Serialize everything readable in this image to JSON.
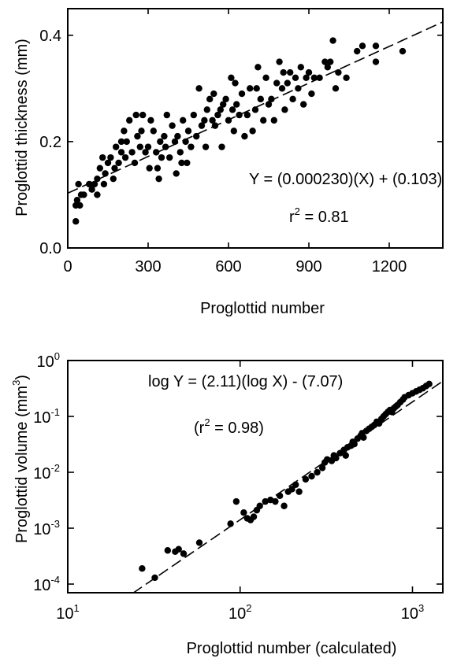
{
  "chart_data": [
    {
      "type": "scatter",
      "title": "",
      "xlabel": "Proglottid number",
      "ylabel": "Proglottid  thickness (mm)",
      "xlim": [
        0,
        1400
      ],
      "ylim": [
        0,
        0.45
      ],
      "x_ticks": [
        {
          "value": 0,
          "label": "0"
        },
        {
          "value": 300,
          "label": "300"
        },
        {
          "value": 600,
          "label": "600"
        },
        {
          "value": 900,
          "label": "900"
        },
        {
          "value": 1200,
          "label": "1200"
        }
      ],
      "y_ticks": [
        {
          "value": 0,
          "label": "0.0"
        },
        {
          "value": 0.2,
          "label": "0.2"
        },
        {
          "value": 0.4,
          "label": "0.4"
        }
      ],
      "grid": false,
      "fit_line": {
        "slope": 0.00023,
        "intercept": 0.103,
        "style": "dashed"
      },
      "annotations": {
        "equation": "Y = (0.000230)(X) + (0.103)",
        "r2_prefix": "r",
        "r2_sup": "2",
        "r2_value": " = 0.81"
      },
      "points": [
        [
          30,
          0.05
        ],
        [
          30,
          0.08
        ],
        [
          35,
          0.09
        ],
        [
          40,
          0.12
        ],
        [
          45,
          0.08
        ],
        [
          50,
          0.1
        ],
        [
          60,
          0.1
        ],
        [
          80,
          0.12
        ],
        [
          90,
          0.11
        ],
        [
          100,
          0.12
        ],
        [
          110,
          0.13
        ],
        [
          110,
          0.1
        ],
        [
          120,
          0.15
        ],
        [
          130,
          0.17
        ],
        [
          135,
          0.12
        ],
        [
          140,
          0.14
        ],
        [
          150,
          0.16
        ],
        [
          160,
          0.17
        ],
        [
          170,
          0.13
        ],
        [
          175,
          0.15
        ],
        [
          180,
          0.19
        ],
        [
          190,
          0.16
        ],
        [
          200,
          0.18
        ],
        [
          200,
          0.2
        ],
        [
          210,
          0.22
        ],
        [
          215,
          0.17
        ],
        [
          220,
          0.2
        ],
        [
          230,
          0.24
        ],
        [
          240,
          0.18
        ],
        [
          250,
          0.16
        ],
        [
          255,
          0.25
        ],
        [
          260,
          0.21
        ],
        [
          270,
          0.19
        ],
        [
          275,
          0.22
        ],
        [
          280,
          0.25
        ],
        [
          290,
          0.18
        ],
        [
          300,
          0.19
        ],
        [
          305,
          0.15
        ],
        [
          310,
          0.24
        ],
        [
          320,
          0.22
        ],
        [
          330,
          0.18
        ],
        [
          335,
          0.15
        ],
        [
          340,
          0.13
        ],
        [
          345,
          0.2
        ],
        [
          350,
          0.17
        ],
        [
          360,
          0.21
        ],
        [
          365,
          0.19
        ],
        [
          370,
          0.25
        ],
        [
          380,
          0.17
        ],
        [
          390,
          0.23
        ],
        [
          400,
          0.2
        ],
        [
          405,
          0.14
        ],
        [
          410,
          0.21
        ],
        [
          420,
          0.18
        ],
        [
          425,
          0.16
        ],
        [
          430,
          0.24
        ],
        [
          440,
          0.2
        ],
        [
          445,
          0.16
        ],
        [
          450,
          0.22
        ],
        [
          460,
          0.19
        ],
        [
          470,
          0.25
        ],
        [
          480,
          0.21
        ],
        [
          490,
          0.3
        ],
        [
          500,
          0.23
        ],
        [
          510,
          0.24
        ],
        [
          515,
          0.19
        ],
        [
          520,
          0.26
        ],
        [
          530,
          0.28
        ],
        [
          540,
          0.24
        ],
        [
          545,
          0.29
        ],
        [
          550,
          0.23
        ],
        [
          560,
          0.25
        ],
        [
          570,
          0.26
        ],
        [
          575,
          0.19
        ],
        [
          580,
          0.27
        ],
        [
          590,
          0.28
        ],
        [
          600,
          0.24
        ],
        [
          610,
          0.32
        ],
        [
          615,
          0.26
        ],
        [
          620,
          0.22
        ],
        [
          625,
          0.31
        ],
        [
          630,
          0.27
        ],
        [
          640,
          0.25
        ],
        [
          650,
          0.29
        ],
        [
          660,
          0.21
        ],
        [
          670,
          0.25
        ],
        [
          680,
          0.3
        ],
        [
          690,
          0.22
        ],
        [
          700,
          0.26
        ],
        [
          705,
          0.3
        ],
        [
          710,
          0.34
        ],
        [
          720,
          0.28
        ],
        [
          730,
          0.24
        ],
        [
          740,
          0.32
        ],
        [
          750,
          0.27
        ],
        [
          760,
          0.28
        ],
        [
          770,
          0.24
        ],
        [
          780,
          0.31
        ],
        [
          790,
          0.35
        ],
        [
          800,
          0.3
        ],
        [
          805,
          0.33
        ],
        [
          810,
          0.26
        ],
        [
          820,
          0.31
        ],
        [
          830,
          0.33
        ],
        [
          840,
          0.28
        ],
        [
          850,
          0.32
        ],
        [
          860,
          0.3
        ],
        [
          870,
          0.34
        ],
        [
          880,
          0.27
        ],
        [
          890,
          0.32
        ],
        [
          900,
          0.33
        ],
        [
          910,
          0.29
        ],
        [
          920,
          0.32
        ],
        [
          940,
          0.32
        ],
        [
          960,
          0.35
        ],
        [
          970,
          0.34
        ],
        [
          980,
          0.35
        ],
        [
          990,
          0.39
        ],
        [
          1000,
          0.3
        ],
        [
          1010,
          0.33
        ],
        [
          1040,
          0.32
        ],
        [
          1080,
          0.37
        ],
        [
          1100,
          0.38
        ],
        [
          1150,
          0.38
        ],
        [
          1150,
          0.35
        ],
        [
          1250,
          0.37
        ]
      ]
    },
    {
      "type": "scatter",
      "title": "",
      "xlabel": "Proglottid number (calculated)",
      "ylabel": "Proglottid  volume (mm",
      "ylabel_sup": "3",
      "ylabel_close": ")",
      "x_scale": "log",
      "y_scale": "log",
      "xlim": [
        10,
        1500
      ],
      "ylim": [
        7e-05,
        1
      ],
      "x_ticks": [
        {
          "value": 10,
          "base": "10",
          "exp": "1"
        },
        {
          "value": 100,
          "base": "10",
          "exp": "2"
        },
        {
          "value": 1000,
          "base": "10",
          "exp": "3"
        }
      ],
      "y_ticks": [
        {
          "value": 0.0001,
          "base": "10",
          "exp": "-4"
        },
        {
          "value": 0.001,
          "base": "10",
          "exp": "-3"
        },
        {
          "value": 0.01,
          "base": "10",
          "exp": "-2"
        },
        {
          "value": 0.1,
          "base": "10",
          "exp": "-1"
        },
        {
          "value": 1,
          "base": "10",
          "exp": "0"
        }
      ],
      "grid": false,
      "fit_line": {
        "log_slope": 2.11,
        "log_intercept": -7.07,
        "style": "dashed"
      },
      "annotations": {
        "equation": "log Y = (2.11)(log X) - (7.07)",
        "r2_prefix": "(r",
        "r2_sup": "2",
        "r2_value": " = 0.98)"
      },
      "points": [
        [
          27,
          0.00019
        ],
        [
          32,
          0.00013
        ],
        [
          38,
          0.0004
        ],
        [
          42,
          0.00038
        ],
        [
          44,
          0.00042
        ],
        [
          47,
          0.00035
        ],
        [
          58,
          0.00055
        ],
        [
          88,
          0.0012
        ],
        [
          95,
          0.003
        ],
        [
          105,
          0.0019
        ],
        [
          110,
          0.0015
        ],
        [
          115,
          0.0014
        ],
        [
          120,
          0.0016
        ],
        [
          125,
          0.0021
        ],
        [
          130,
          0.0025
        ],
        [
          140,
          0.003
        ],
        [
          150,
          0.0032
        ],
        [
          160,
          0.003
        ],
        [
          170,
          0.0038
        ],
        [
          180,
          0.0025
        ],
        [
          190,
          0.0045
        ],
        [
          200,
          0.005
        ],
        [
          210,
          0.006
        ],
        [
          220,
          0.0045
        ],
        [
          240,
          0.0075
        ],
        [
          260,
          0.0085
        ],
        [
          280,
          0.01
        ],
        [
          300,
          0.012
        ],
        [
          310,
          0.015
        ],
        [
          320,
          0.017
        ],
        [
          340,
          0.016
        ],
        [
          350,
          0.02
        ],
        [
          360,
          0.018
        ],
        [
          380,
          0.022
        ],
        [
          400,
          0.025
        ],
        [
          410,
          0.02
        ],
        [
          420,
          0.028
        ],
        [
          440,
          0.03
        ],
        [
          450,
          0.035
        ],
        [
          460,
          0.032
        ],
        [
          480,
          0.04
        ],
        [
          500,
          0.045
        ],
        [
          510,
          0.05
        ],
        [
          520,
          0.042
        ],
        [
          540,
          0.055
        ],
        [
          560,
          0.06
        ],
        [
          580,
          0.065
        ],
        [
          600,
          0.07
        ],
        [
          620,
          0.08
        ],
        [
          640,
          0.075
        ],
        [
          660,
          0.09
        ],
        [
          680,
          0.1
        ],
        [
          700,
          0.11
        ],
        [
          720,
          0.12
        ],
        [
          740,
          0.13
        ],
        [
          760,
          0.12
        ],
        [
          780,
          0.14
        ],
        [
          800,
          0.15
        ],
        [
          820,
          0.16
        ],
        [
          850,
          0.18
        ],
        [
          880,
          0.2
        ],
        [
          900,
          0.22
        ],
        [
          950,
          0.24
        ],
        [
          1000,
          0.26
        ],
        [
          1050,
          0.28
        ],
        [
          1100,
          0.3
        ],
        [
          1150,
          0.32
        ],
        [
          1200,
          0.35
        ],
        [
          1250,
          0.38
        ]
      ]
    }
  ]
}
